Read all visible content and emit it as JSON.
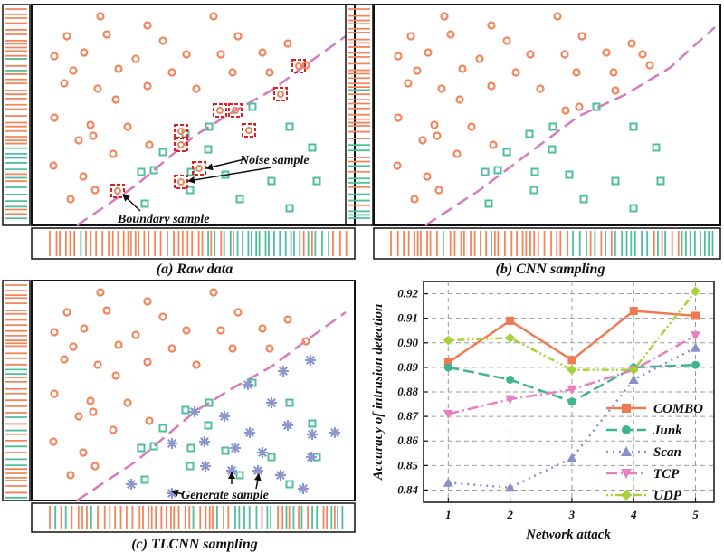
{
  "colors": {
    "orange": "#F4845A",
    "teal": "#4FBF9B",
    "purple": "#8C97CC",
    "pink": "#D57BBE",
    "red": "#E02020",
    "combo": "#F07A50",
    "junk": "#3FB58E",
    "scan": "#8A90C8",
    "tcp": "#E77FC3",
    "udp": "#A8D13A"
  },
  "panels": {
    "a": {
      "caption": "(a) Raw data",
      "noise_label": "Noise sample",
      "boundary_label": "Boundary sample"
    },
    "b": {
      "caption": "(b) CNN sampling"
    },
    "c": {
      "caption": "(c) TLCNN sampling",
      "generate_label": "Generate sample"
    }
  },
  "chart_data": {
    "type": "line",
    "title": "",
    "xlabel": "Network attack",
    "ylabel": "Accuracy of intrusion detection",
    "x": [
      1,
      2,
      3,
      4,
      5
    ],
    "xlim": [
      0.6,
      5.3
    ],
    "ylim": [
      0.835,
      0.925
    ],
    "yticks": [
      "0.84",
      "0.85",
      "0.86",
      "0.87",
      "0.88",
      "0.89",
      "0.90",
      "0.91",
      "0.92"
    ],
    "xticks": [
      "1",
      "2",
      "3",
      "4",
      "5"
    ],
    "grid": true,
    "legend_position": "bottom-right",
    "series": [
      {
        "name": "COMBO",
        "values": [
          0.892,
          0.909,
          0.893,
          0.913,
          0.911
        ],
        "color": "#F07A50",
        "marker": "square",
        "dash": ""
      },
      {
        "name": "Junk",
        "values": [
          0.89,
          0.885,
          0.876,
          0.89,
          0.891
        ],
        "color": "#3FB58E",
        "marker": "circle",
        "dash": "12,5"
      },
      {
        "name": "Scan",
        "values": [
          0.843,
          0.841,
          0.853,
          0.885,
          0.898
        ],
        "color": "#8A90C8",
        "marker": "triangle-up",
        "dash": "2,5"
      },
      {
        "name": "TCP",
        "values": [
          0.871,
          0.877,
          0.881,
          0.889,
          0.903
        ],
        "color": "#E77FC3",
        "marker": "triangle-down",
        "dash": "12,4,2,4"
      },
      {
        "name": "UDP",
        "values": [
          0.901,
          0.902,
          0.889,
          0.889,
          0.921
        ],
        "color": "#A8D13A",
        "marker": "diamond",
        "dash": "2,3,2,3,8,3"
      }
    ]
  }
}
